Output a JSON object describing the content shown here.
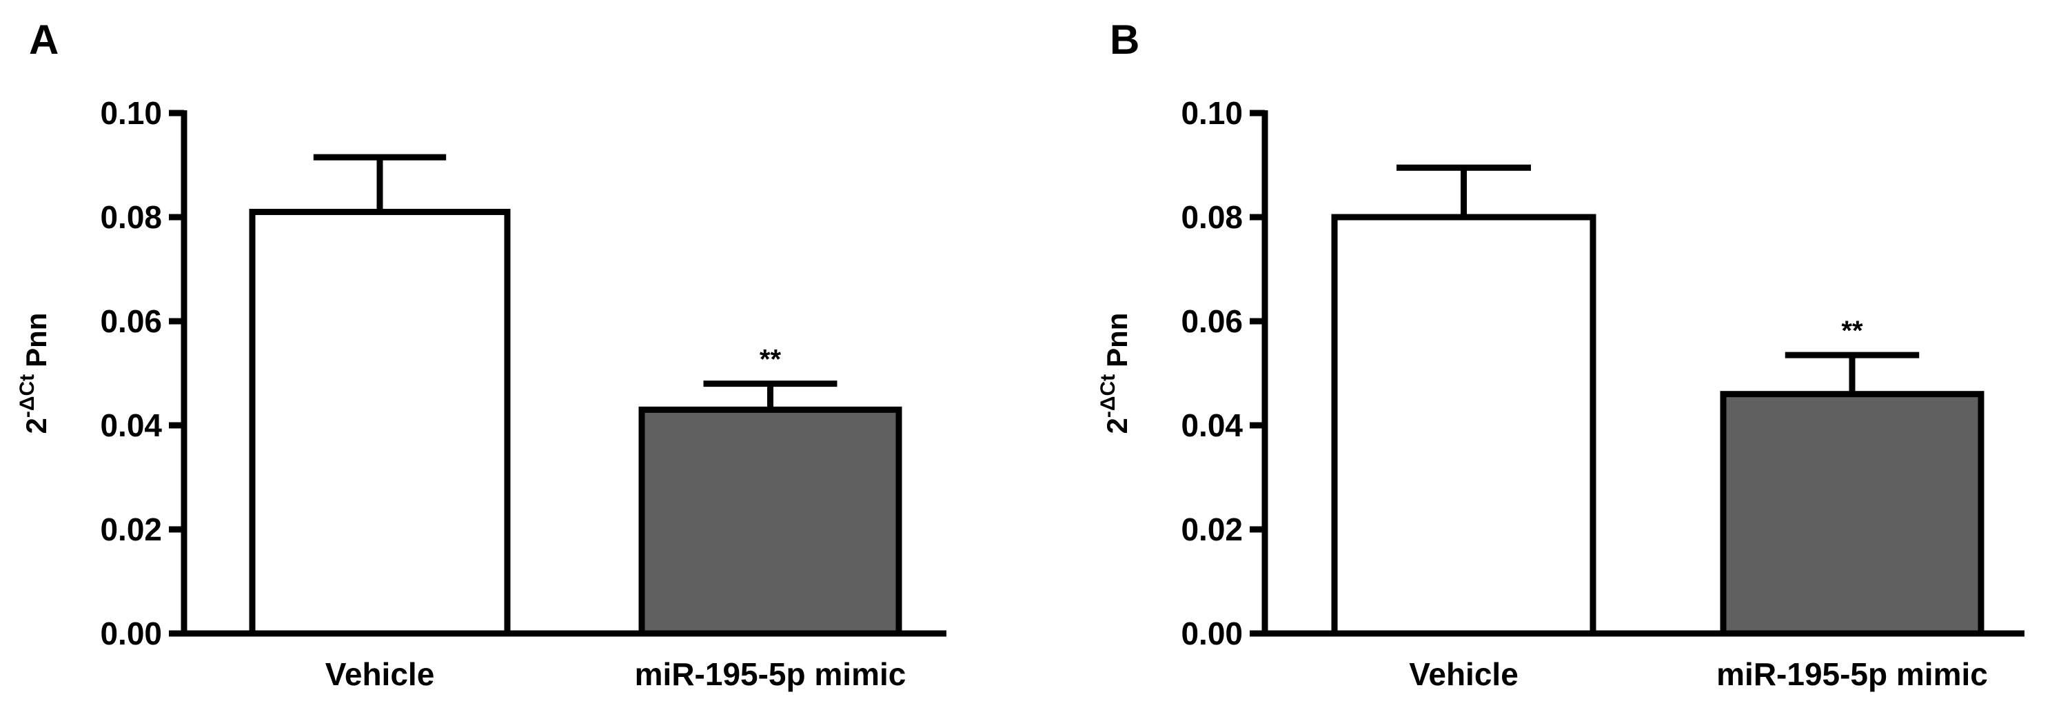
{
  "chart_data": [
    {
      "type": "bar",
      "panel": "A",
      "y_label": {
        "base": "2",
        "superscript": "-ΔCt",
        "text": "Pnn"
      },
      "categories": [
        "Vehicle",
        "miR-195-5p mimic"
      ],
      "values": [
        0.081,
        0.043
      ],
      "errors": [
        0.0105,
        0.005
      ],
      "colors": [
        "#ffffff",
        "#606060"
      ],
      "annotations": [
        {
          "text": "**",
          "x": "miR-195-5p mimic"
        }
      ],
      "ylim": [
        0,
        0.1
      ],
      "yticks": [
        {
          "value": 0,
          "label": "0.00"
        },
        0.02,
        0.04,
        0.06,
        0.08,
        {
          "value": 0.1,
          "label": "0.10"
        }
      ]
    },
    {
      "type": "bar",
      "panel": "B",
      "y_label": {
        "base": "2",
        "superscript": "-ΔCt",
        "text": "Pnn"
      },
      "categories": [
        "Vehicle",
        "miR-195-5p mimic"
      ],
      "values": [
        0.08,
        0.046
      ],
      "errors": [
        0.0095,
        0.0075
      ],
      "colors": [
        "#ffffff",
        "#606060"
      ],
      "annotations": [
        {
          "text": "**",
          "x": "miR-195-5p mimic"
        }
      ],
      "ylim": [
        0,
        0.1
      ],
      "yticks": [
        {
          "value": 0,
          "label": "0.00"
        },
        0.02,
        0.04,
        0.06,
        0.08,
        {
          "value": 0.1,
          "label": "0.10"
        }
      ]
    }
  ]
}
